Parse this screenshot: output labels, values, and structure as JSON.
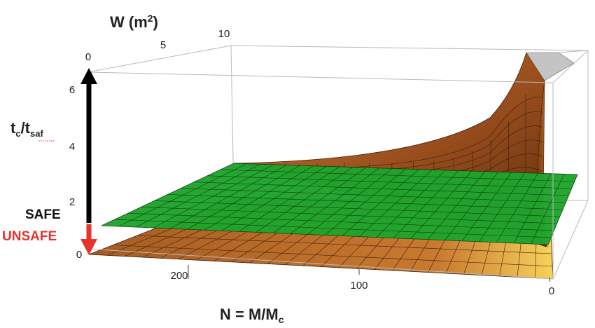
{
  "chart_data": {
    "type": "surface3d",
    "z_axis": {
      "label_main": "t",
      "label_sub1": "c",
      "label_sep": "/t",
      "label_sub2": "saf",
      "ticks": [
        "0",
        "2",
        "4",
        "6"
      ]
    },
    "w_axis": {
      "label_main": "W (m",
      "label_sup": "2",
      "label_close": ")",
      "ticks": [
        "0",
        "5",
        "10"
      ]
    },
    "n_axis": {
      "label_main": "N = M/M",
      "label_sub": "c",
      "ticks": [
        "200",
        "100",
        "0"
      ]
    },
    "annotations": {
      "safe": "SAFE",
      "unsafe": "UNSAFE"
    },
    "surfaces": [
      {
        "name": "",
        "color": "#b5682a",
        "shape": "ratio t_c/t_saf rising steeply as N approaches 0 and W increases"
      },
      {
        "name": "",
        "color": "#22aa33",
        "shape": "flat plane at t_c/t_saf = 1"
      }
    ],
    "arrow_colors": {
      "safe": "#000000",
      "unsafe": "#e8332a"
    }
  }
}
